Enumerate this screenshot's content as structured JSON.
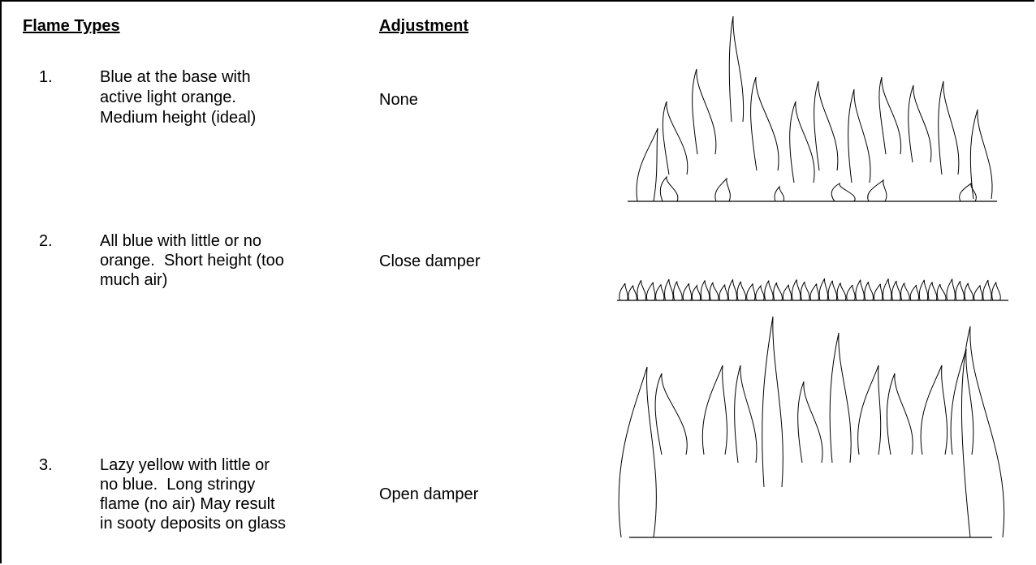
{
  "header": {
    "flame_types": "Flame Types",
    "adjustment": "Adjustment"
  },
  "rows": [
    {
      "number": "1.",
      "description": [
        "Blue at the base with",
        "active light orange.",
        "Medium height (ideal)"
      ],
      "adjustment": "None"
    },
    {
      "number": "2.",
      "description": [
        "All blue with little or no",
        "orange.  Short height (too",
        "much air)"
      ],
      "adjustment": "Close damper"
    },
    {
      "number": "3.",
      "description": [
        "Lazy yellow with little or",
        "no blue.  Long stringy",
        "flame (no air) May result",
        "in sooty deposits on glass"
      ],
      "adjustment": "Open damper"
    }
  ]
}
